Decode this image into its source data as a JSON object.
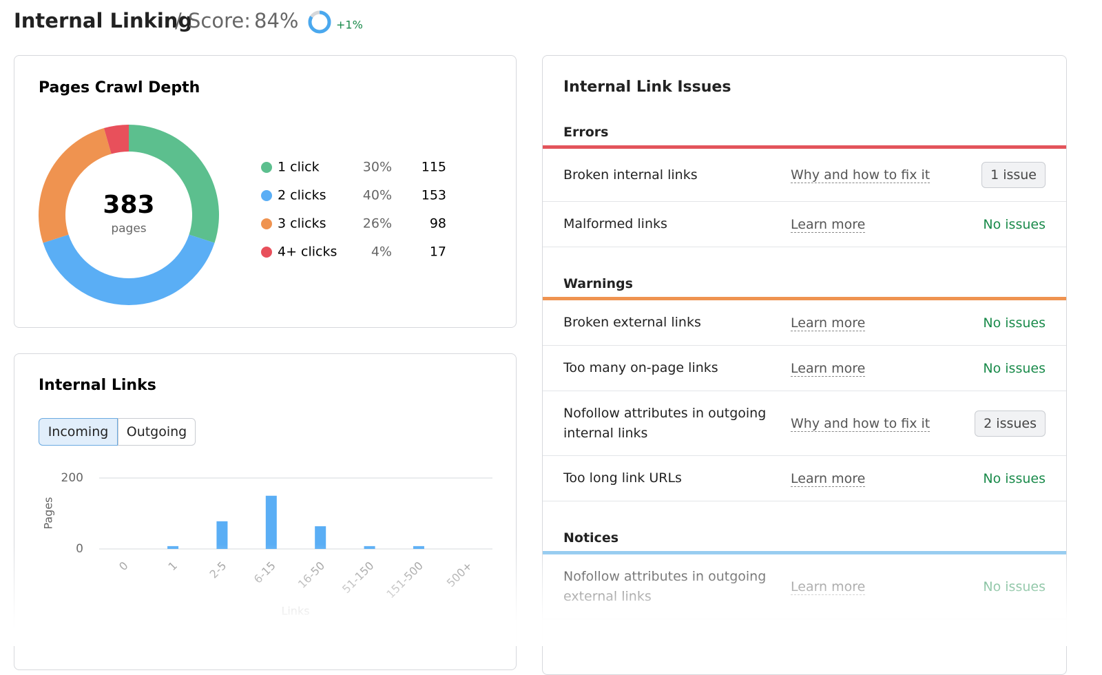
{
  "header": {
    "title": "Internal Linking",
    "score_prefix": "/ Score:",
    "score": {
      "value": 84,
      "label": "84%"
    },
    "score_color": "#4aa8ee",
    "delta": "+1%"
  },
  "crawl_depth": {
    "title": "Pages Crawl Depth",
    "total": 383,
    "total_label": "pages",
    "items": [
      {
        "label": "1 click",
        "percent": "30%",
        "count": 115,
        "color": "#5cbf8e"
      },
      {
        "label": "2 clicks",
        "percent": "40%",
        "count": 153,
        "color": "#5aaef5"
      },
      {
        "label": "3 clicks",
        "percent": "26%",
        "count": 98,
        "color": "#ef9350"
      },
      {
        "label": "4+ clicks",
        "percent": "4%",
        "count": 17,
        "color": "#e8505b"
      }
    ]
  },
  "internal_links": {
    "title": "Internal Links",
    "tabs": [
      "Incoming",
      "Outgoing"
    ],
    "active_tab": 0,
    "chart_data": {
      "type": "bar",
      "y_label": "Pages",
      "x_label": "Links",
      "categories": [
        "0",
        "1",
        "2-5",
        "6-15",
        "16-50",
        "51-150",
        "151-500",
        "500+"
      ],
      "values": [
        0,
        8,
        78,
        150,
        64,
        8,
        8,
        0
      ],
      "color": "#5aaef5",
      "ylim": [
        0,
        200
      ],
      "yticks": [
        0,
        200
      ],
      "grid": true
    }
  },
  "issues": {
    "title": "Internal Link Issues",
    "groups": [
      {
        "name": "Errors",
        "color": "#e3545b",
        "rows": [
          {
            "name": "Broken internal links",
            "link": "Why and how to fix it",
            "status": "1 issue",
            "has_issues": true
          },
          {
            "name": "Malformed links",
            "link": "Learn more",
            "status": "No issues",
            "has_issues": false
          }
        ]
      },
      {
        "name": "Warnings",
        "color": "#ef9350",
        "rows": [
          {
            "name": "Broken external links",
            "link": "Learn more",
            "status": "No issues",
            "has_issues": false
          },
          {
            "name": "Too many on-page links",
            "link": "Learn more",
            "status": "No issues",
            "has_issues": false
          },
          {
            "name": "Nofollow attributes in outgoing internal links",
            "link": "Why and how to fix it",
            "status": "2 issues",
            "has_issues": true
          },
          {
            "name": "Too long link URLs",
            "link": "Learn more",
            "status": "No issues",
            "has_issues": false
          }
        ]
      },
      {
        "name": "Notices",
        "color": "#8cc7ef",
        "rows": [
          {
            "name": "Nofollow attributes in outgoing external links",
            "link": "Learn more",
            "status": "No issues",
            "has_issues": false
          }
        ]
      }
    ]
  }
}
